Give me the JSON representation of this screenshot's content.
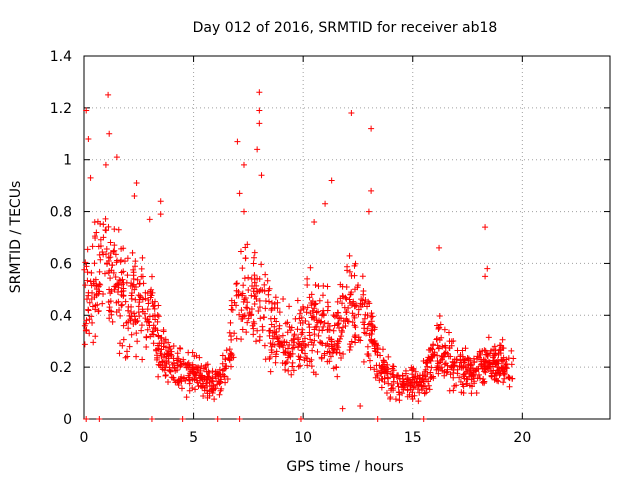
{
  "chart_data": {
    "type": "scatter",
    "title": "Day 012 of 2016, SRMTID for receiver ab18",
    "xlabel": "GPS time / hours",
    "ylabel": "SRMTID / TECUs",
    "xlim": [
      0,
      24
    ],
    "ylim": [
      0,
      1.4
    ],
    "grid": true,
    "marker": "+",
    "color": "#ff0000",
    "x_ticks": [
      0,
      5,
      10,
      15,
      20
    ],
    "x_tick_labels": [
      "0",
      "5",
      "10",
      "15",
      "20"
    ],
    "y_ticks": [
      0,
      0.2,
      0.4,
      0.6,
      0.8,
      1.0,
      1.2,
      1.4
    ],
    "y_tick_labels": [
      "0",
      "0.2",
      "0.4",
      "0.6",
      "0.8",
      "1",
      "1.2",
      "1.4"
    ],
    "series": [
      {
        "name": "ab18",
        "x_range": [
          0,
          19.6
        ],
        "profile_hours": [
          0,
          0.5,
          1,
          1.5,
          2,
          2.5,
          3,
          3.5,
          4,
          4.5,
          5,
          5.5,
          6,
          6.5,
          7,
          7.5,
          8,
          8.5,
          9,
          9.5,
          10,
          10.5,
          11,
          11.5,
          12,
          12.5,
          13,
          13.5,
          14,
          14.5,
          15,
          15.5,
          16,
          16.5,
          17,
          17.5,
          18,
          18.5,
          19,
          19.5
        ],
        "profile_level": [
          0.45,
          0.55,
          0.6,
          0.5,
          0.45,
          0.45,
          0.4,
          0.28,
          0.2,
          0.18,
          0.17,
          0.15,
          0.14,
          0.2,
          0.42,
          0.48,
          0.45,
          0.35,
          0.3,
          0.28,
          0.32,
          0.4,
          0.35,
          0.3,
          0.42,
          0.4,
          0.38,
          0.2,
          0.15,
          0.13,
          0.14,
          0.15,
          0.25,
          0.28,
          0.2,
          0.18,
          0.2,
          0.22,
          0.2,
          0.2
        ],
        "peaks": [
          {
            "x": 0.1,
            "y": 1.19
          },
          {
            "x": 0.2,
            "y": 1.08
          },
          {
            "x": 0.3,
            "y": 0.93
          },
          {
            "x": 1.1,
            "y": 1.25
          },
          {
            "x": 1.15,
            "y": 1.1
          },
          {
            "x": 1.0,
            "y": 0.98
          },
          {
            "x": 1.5,
            "y": 1.01
          },
          {
            "x": 2.4,
            "y": 0.91
          },
          {
            "x": 2.3,
            "y": 0.86
          },
          {
            "x": 3.5,
            "y": 0.84
          },
          {
            "x": 3.5,
            "y": 0.79
          },
          {
            "x": 3.0,
            "y": 0.77
          },
          {
            "x": 7.0,
            "y": 1.07
          },
          {
            "x": 7.3,
            "y": 0.98
          },
          {
            "x": 7.1,
            "y": 0.87
          },
          {
            "x": 7.3,
            "y": 0.8
          },
          {
            "x": 8.0,
            "y": 1.26
          },
          {
            "x": 8.0,
            "y": 1.19
          },
          {
            "x": 7.9,
            "y": 1.04
          },
          {
            "x": 8.0,
            "y": 1.14
          },
          {
            "x": 8.1,
            "y": 0.94
          },
          {
            "x": 11.3,
            "y": 0.92
          },
          {
            "x": 11.0,
            "y": 0.83
          },
          {
            "x": 10.5,
            "y": 0.76
          },
          {
            "x": 12.2,
            "y": 1.18
          },
          {
            "x": 13.1,
            "y": 1.12
          },
          {
            "x": 13.1,
            "y": 0.88
          },
          {
            "x": 13.0,
            "y": 0.8
          },
          {
            "x": 16.2,
            "y": 0.66
          },
          {
            "x": 18.3,
            "y": 0.74
          },
          {
            "x": 18.4,
            "y": 0.58
          },
          {
            "x": 18.3,
            "y": 0.55
          },
          {
            "x": 12.6,
            "y": 0.05
          },
          {
            "x": 11.8,
            "y": 0.04
          }
        ],
        "zero_points": [
          0.1,
          0.7,
          3.1,
          4.5,
          6.1,
          7.1,
          9.9,
          13.4,
          15.5
        ]
      }
    ]
  }
}
